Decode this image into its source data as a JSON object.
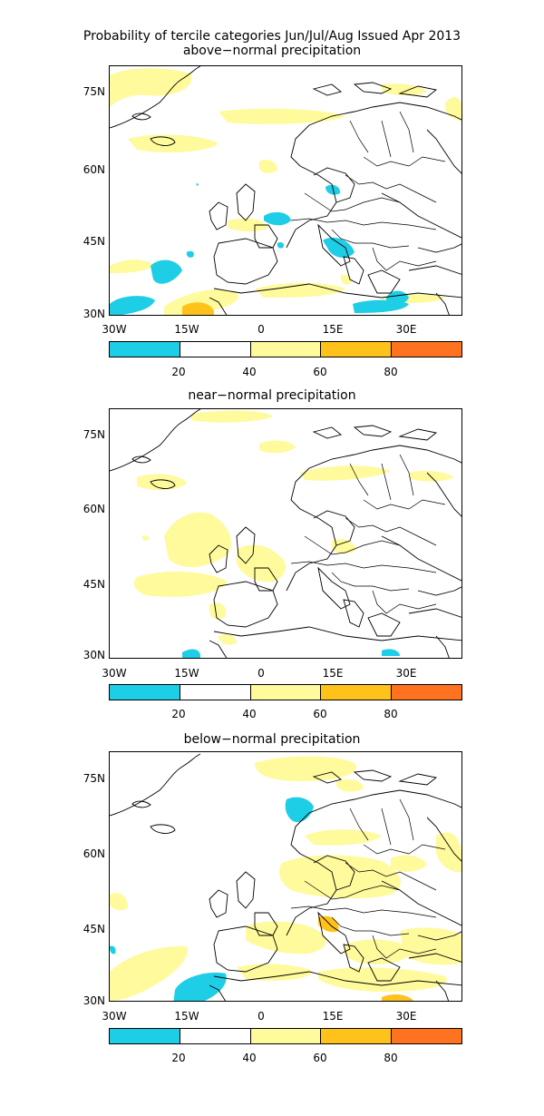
{
  "figure": {
    "title": "Probability of tercile categories Jun/Jul/Aug Issued Apr 2013"
  },
  "panels": [
    {
      "subtitle": "above−normal precipitation"
    },
    {
      "subtitle": "near−normal precipitation"
    },
    {
      "subtitle": "below−normal precipitation"
    }
  ],
  "axes": {
    "lat_labels": [
      "75N",
      "60N",
      "45N",
      "30N"
    ],
    "lon_labels": [
      "30W",
      "15W",
      "0",
      "15E",
      "30E"
    ]
  },
  "colorbar": {
    "segments": [
      {
        "color": "#1ecde6"
      },
      {
        "color": "#ffffff"
      },
      {
        "color": "#fffa9c"
      },
      {
        "color": "#ffc21a"
      },
      {
        "color": "#ff7320"
      }
    ],
    "labels": [
      "20",
      "40",
      "60",
      "80"
    ]
  },
  "colors": {
    "below_20": "#1ecde6",
    "p40_60": "#fffa9c",
    "p60_80": "#ffc21a",
    "p80_plus": "#ff7320"
  }
}
